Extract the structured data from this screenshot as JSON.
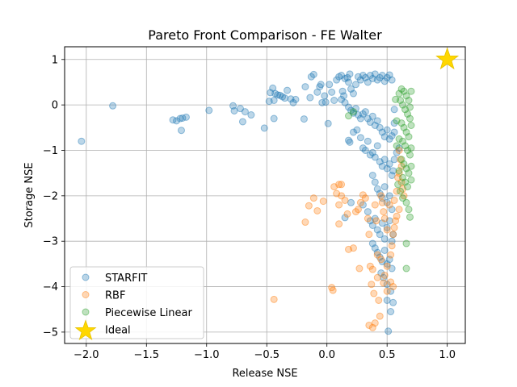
{
  "chart_data": {
    "type": "scatter",
    "title": "Pareto Front Comparison - FE Walter",
    "xlabel": "Release NSE",
    "ylabel": "Storage NSE",
    "xlim": [
      -2.18,
      1.15
    ],
    "ylim": [
      -5.25,
      1.28
    ],
    "xticks": [
      -2.0,
      -1.5,
      -1.0,
      -0.5,
      0.0,
      0.5,
      1.0
    ],
    "xtick_labels": [
      "−2.0",
      "−1.5",
      "−1.0",
      "−0.5",
      "0.0",
      "0.5",
      "1.0"
    ],
    "yticks": [
      -5,
      -4,
      -3,
      -2,
      -1,
      0,
      1
    ],
    "ytick_labels": [
      "−5",
      "−4",
      "−3",
      "−2",
      "−1",
      "0",
      "1"
    ],
    "grid": true,
    "legend_position": "lower-left",
    "series": [
      {
        "name": "STARFIT",
        "color": "#1f77b4",
        "marker": "circle",
        "points": [
          [
            -2.04,
            -0.8
          ],
          [
            -1.78,
            -0.02
          ],
          [
            -1.28,
            -0.33
          ],
          [
            -1.25,
            -0.35
          ],
          [
            -1.22,
            -0.3
          ],
          [
            -1.2,
            -0.29
          ],
          [
            -1.21,
            -0.56
          ],
          [
            -1.17,
            -0.27
          ],
          [
            -0.98,
            -0.12
          ],
          [
            -0.78,
            -0.02
          ],
          [
            -0.77,
            -0.13
          ],
          [
            -0.72,
            -0.08
          ],
          [
            -0.7,
            -0.37
          ],
          [
            -0.68,
            -0.15
          ],
          [
            -0.63,
            -0.22
          ],
          [
            -0.52,
            -0.51
          ],
          [
            -0.48,
            0.08
          ],
          [
            -0.47,
            0.27
          ],
          [
            -0.45,
            0.37
          ],
          [
            -0.44,
            0.1
          ],
          [
            -0.43,
            0.25
          ],
          [
            -0.41,
            0.22
          ],
          [
            -0.39,
            0.21
          ],
          [
            -0.37,
            0.18
          ],
          [
            -0.35,
            0.15
          ],
          [
            -0.33,
            0.32
          ],
          [
            -0.3,
            0.13
          ],
          [
            -0.28,
            0.05
          ],
          [
            -0.26,
            0.12
          ],
          [
            -0.44,
            -0.3
          ],
          [
            -0.19,
            -0.31
          ],
          [
            -0.18,
            0.4
          ],
          [
            -0.14,
            0.16
          ],
          [
            -0.13,
            0.62
          ],
          [
            -0.11,
            0.67
          ],
          [
            -0.08,
            0.28
          ],
          [
            -0.06,
            0.4
          ],
          [
            -0.05,
            0.45
          ],
          [
            -0.04,
            0.05
          ],
          [
            -0.02,
            0.2
          ],
          [
            -0.01,
            0.06
          ],
          [
            0.01,
            -0.41
          ],
          [
            0.02,
            0.45
          ],
          [
            0.04,
            0.28
          ],
          [
            0.06,
            0.1
          ],
          [
            0.08,
            0.55
          ],
          [
            0.1,
            0.62
          ],
          [
            0.12,
            0.65
          ],
          [
            0.13,
            0.3
          ],
          [
            0.14,
            0.2
          ],
          [
            0.15,
            0.58
          ],
          [
            0.17,
            0.6
          ],
          [
            0.18,
            0.5
          ],
          [
            0.19,
            0.68
          ],
          [
            0.2,
            0.35
          ],
          [
            0.22,
            0.25
          ],
          [
            0.24,
            0.45
          ],
          [
            0.26,
            0.62
          ],
          [
            0.28,
            0.55
          ],
          [
            0.3,
            0.65
          ],
          [
            0.32,
            0.6
          ],
          [
            0.34,
            0.5
          ],
          [
            0.36,
            0.65
          ],
          [
            0.38,
            0.58
          ],
          [
            0.4,
            0.68
          ],
          [
            0.42,
            0.55
          ],
          [
            0.44,
            0.6
          ],
          [
            0.46,
            0.65
          ],
          [
            0.48,
            0.52
          ],
          [
            0.5,
            0.6
          ],
          [
            0.52,
            0.66
          ],
          [
            0.54,
            0.55
          ],
          [
            0.12,
            0.12
          ],
          [
            0.15,
            0.05
          ],
          [
            0.18,
            -0.05
          ],
          [
            0.2,
            -0.12
          ],
          [
            0.22,
            -0.18
          ],
          [
            0.24,
            -0.08
          ],
          [
            0.26,
            -0.22
          ],
          [
            0.28,
            -0.3
          ],
          [
            0.3,
            -0.2
          ],
          [
            0.32,
            -0.15
          ],
          [
            0.34,
            -0.3
          ],
          [
            0.36,
            -0.38
          ],
          [
            0.38,
            -0.25
          ],
          [
            0.4,
            -0.45
          ],
          [
            0.42,
            -0.35
          ],
          [
            0.44,
            -0.5
          ],
          [
            0.46,
            -0.6
          ],
          [
            0.48,
            -0.7
          ],
          [
            0.5,
            -0.55
          ],
          [
            0.52,
            -0.75
          ],
          [
            0.54,
            -0.68
          ],
          [
            0.56,
            -0.6
          ],
          [
            0.56,
            -0.4
          ],
          [
            0.56,
            -0.1
          ],
          [
            0.18,
            -0.78
          ],
          [
            0.19,
            -0.82
          ],
          [
            0.22,
            -0.6
          ],
          [
            0.25,
            -0.55
          ],
          [
            0.28,
            -0.72
          ],
          [
            0.3,
            -0.95
          ],
          [
            0.32,
            -1.0
          ],
          [
            0.34,
            -0.8
          ],
          [
            0.36,
            -1.1
          ],
          [
            0.38,
            -1.05
          ],
          [
            0.4,
            -1.15
          ],
          [
            0.42,
            -0.9
          ],
          [
            0.44,
            -1.25
          ],
          [
            0.46,
            -1.35
          ],
          [
            0.48,
            -1.2
          ],
          [
            0.5,
            -1.4
          ],
          [
            0.52,
            -1.3
          ],
          [
            0.54,
            -1.55
          ],
          [
            0.55,
            -1.45
          ],
          [
            0.56,
            -1.2
          ],
          [
            0.38,
            -1.55
          ],
          [
            0.4,
            -1.7
          ],
          [
            0.42,
            -1.85
          ],
          [
            0.44,
            -1.95
          ],
          [
            0.46,
            -2.05
          ],
          [
            0.48,
            -1.8
          ],
          [
            0.5,
            -2.15
          ],
          [
            0.52,
            -2.0
          ],
          [
            0.54,
            -2.3
          ],
          [
            0.2,
            -2.15
          ],
          [
            0.3,
            -2.2
          ],
          [
            0.34,
            -2.35
          ],
          [
            0.15,
            -2.48
          ],
          [
            0.36,
            -2.55
          ],
          [
            0.38,
            -2.65
          ],
          [
            0.4,
            -2.5
          ],
          [
            0.42,
            -2.75
          ],
          [
            0.44,
            -2.85
          ],
          [
            0.46,
            -2.6
          ],
          [
            0.48,
            -2.95
          ],
          [
            0.5,
            -2.7
          ],
          [
            0.52,
            -2.55
          ],
          [
            0.54,
            -3.0
          ],
          [
            0.55,
            -2.85
          ],
          [
            0.38,
            -3.05
          ],
          [
            0.4,
            -3.15
          ],
          [
            0.42,
            -3.25
          ],
          [
            0.44,
            -3.35
          ],
          [
            0.46,
            -3.45
          ],
          [
            0.48,
            -3.2
          ],
          [
            0.5,
            -3.5
          ],
          [
            0.52,
            -3.4
          ],
          [
            0.54,
            -3.6
          ],
          [
            0.45,
            -3.7
          ],
          [
            0.47,
            -3.8
          ],
          [
            0.5,
            -3.95
          ],
          [
            0.53,
            -4.1
          ],
          [
            0.5,
            -4.3
          ],
          [
            0.53,
            -4.55
          ],
          [
            0.55,
            -4.35
          ],
          [
            0.51,
            -4.98
          ],
          [
            0.58,
            -1.05
          ],
          [
            0.6,
            -0.95
          ]
        ]
      },
      {
        "name": "RBF",
        "color": "#ff7f0e",
        "marker": "circle",
        "points": [
          [
            -0.44,
            -4.28
          ],
          [
            -0.18,
            -2.58
          ],
          [
            -0.15,
            -2.22
          ],
          [
            -0.11,
            -2.05
          ],
          [
            -0.08,
            -2.33
          ],
          [
            -0.03,
            -2.12
          ],
          [
            0.04,
            -4.02
          ],
          [
            0.05,
            -4.08
          ],
          [
            0.06,
            -1.8
          ],
          [
            0.08,
            -1.95
          ],
          [
            0.1,
            -1.75
          ],
          [
            0.12,
            -2.0
          ],
          [
            0.1,
            -2.2
          ],
          [
            0.1,
            -2.62
          ],
          [
            0.12,
            -1.75
          ],
          [
            0.15,
            -2.1
          ],
          [
            0.17,
            -2.4
          ],
          [
            0.18,
            -3.18
          ],
          [
            0.22,
            -3.15
          ],
          [
            0.24,
            -2.35
          ],
          [
            0.26,
            -2.3
          ],
          [
            0.27,
            -3.6
          ],
          [
            0.28,
            -2.15
          ],
          [
            0.3,
            -1.98
          ],
          [
            0.32,
            -2.05
          ],
          [
            0.34,
            -2.5
          ],
          [
            0.35,
            -2.85
          ],
          [
            0.36,
            -3.55
          ],
          [
            0.37,
            -3.95
          ],
          [
            0.38,
            -3.62
          ],
          [
            0.39,
            -4.15
          ],
          [
            0.4,
            -2.2
          ],
          [
            0.41,
            -2.55
          ],
          [
            0.42,
            -3.3
          ],
          [
            0.43,
            -4.3
          ],
          [
            0.44,
            -4.65
          ],
          [
            0.45,
            -2.0
          ],
          [
            0.46,
            -2.15
          ],
          [
            0.47,
            -2.35
          ],
          [
            0.48,
            -2.5
          ],
          [
            0.5,
            -2.75
          ],
          [
            0.52,
            -2.2
          ],
          [
            0.53,
            -3.9
          ],
          [
            0.55,
            -4.0
          ],
          [
            0.35,
            -4.85
          ],
          [
            0.38,
            -4.9
          ],
          [
            0.4,
            -4.8
          ],
          [
            0.45,
            -3.4
          ],
          [
            0.56,
            -2.1
          ],
          [
            0.58,
            -1.9
          ],
          [
            0.59,
            -1.6
          ],
          [
            0.6,
            -1.0
          ],
          [
            0.61,
            -1.2
          ],
          [
            0.62,
            -1.35
          ],
          [
            0.6,
            -1.5
          ],
          [
            0.62,
            -1.7
          ],
          [
            0.63,
            -1.85
          ],
          [
            0.64,
            -2.0
          ],
          [
            0.6,
            -2.3
          ],
          [
            0.58,
            -2.45
          ],
          [
            0.57,
            -2.55
          ],
          [
            0.56,
            -2.7
          ],
          [
            0.55,
            -2.85
          ],
          [
            0.54,
            -3.1
          ],
          [
            0.53,
            -3.3
          ],
          [
            0.5,
            -3.55
          ],
          [
            0.48,
            -3.75
          ],
          [
            0.5,
            -4.1
          ],
          [
            0.47,
            -3.92
          ],
          [
            0.42,
            -3.8
          ]
        ]
      },
      {
        "name": "Piecewise Linear",
        "color": "#2ca02c",
        "marker": "circle",
        "points": [
          [
            0.18,
            -0.24
          ],
          [
            0.22,
            -0.15
          ],
          [
            0.57,
            0.12
          ],
          [
            0.6,
            0.25
          ],
          [
            0.62,
            0.35
          ],
          [
            0.64,
            0.3
          ],
          [
            0.66,
            0.2
          ],
          [
            0.68,
            0.1
          ],
          [
            0.63,
            0.0
          ],
          [
            0.65,
            -0.1
          ],
          [
            0.67,
            -0.2
          ],
          [
            0.69,
            -0.3
          ],
          [
            0.62,
            -0.4
          ],
          [
            0.64,
            -0.5
          ],
          [
            0.66,
            -0.6
          ],
          [
            0.68,
            -0.7
          ],
          [
            0.63,
            -0.8
          ],
          [
            0.65,
            -0.9
          ],
          [
            0.67,
            -1.0
          ],
          [
            0.69,
            -1.1
          ],
          [
            0.62,
            -1.2
          ],
          [
            0.64,
            -1.3
          ],
          [
            0.66,
            -1.4
          ],
          [
            0.68,
            -1.5
          ],
          [
            0.63,
            -1.6
          ],
          [
            0.65,
            -1.7
          ],
          [
            0.67,
            -1.8
          ],
          [
            0.69,
            -0.05
          ],
          [
            0.61,
            0.1
          ],
          [
            0.7,
            -0.45
          ],
          [
            0.7,
            -0.95
          ],
          [
            0.7,
            -1.35
          ],
          [
            0.6,
            -1.45
          ],
          [
            0.6,
            -0.75
          ],
          [
            0.61,
            -1.9
          ],
          [
            0.63,
            -2.05
          ],
          [
            0.66,
            -2.15
          ],
          [
            0.68,
            -2.3
          ],
          [
            0.69,
            -2.47
          ],
          [
            0.66,
            -3.05
          ],
          [
            0.66,
            -3.6
          ],
          [
            0.58,
            -0.35
          ],
          [
            0.58,
            -0.9
          ],
          [
            0.59,
            -1.75
          ],
          [
            0.7,
            -1.65
          ],
          [
            0.7,
            0.3
          ]
        ]
      },
      {
        "name": "Ideal",
        "color": "#ffd700",
        "marker": "star",
        "points": [
          [
            1.0,
            1.0
          ]
        ]
      }
    ]
  }
}
